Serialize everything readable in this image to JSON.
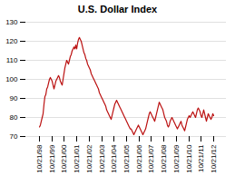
{
  "chart_data": {
    "type": "line",
    "title": "U.S. Dollar Index",
    "color": "#bb1111",
    "grid": true,
    "ylim": [
      70,
      130
    ],
    "yticks": [
      70,
      80,
      90,
      100,
      110,
      120,
      130
    ],
    "categories": [
      "10/21/98",
      null,
      null,
      null,
      null,
      null,
      null,
      null,
      null,
      null,
      null,
      null,
      null,
      null,
      "10/21/99",
      null,
      null,
      null,
      null,
      null,
      null,
      null,
      null,
      null,
      null,
      null,
      null,
      "10/21/00",
      null,
      null,
      null,
      null,
      null,
      null,
      null,
      null,
      null,
      null,
      null,
      null,
      null,
      "10/21/01",
      null,
      null,
      null,
      null,
      null,
      null,
      null,
      null,
      null,
      null,
      null,
      null,
      null,
      "10/21/02",
      null,
      null,
      null,
      null,
      null,
      null,
      null,
      null,
      null,
      null,
      null,
      null,
      null,
      "10/21/03",
      null,
      null,
      null,
      null,
      null,
      null,
      null,
      null,
      null,
      null,
      null,
      null,
      "10/21/04",
      null,
      null,
      null,
      null,
      null,
      null,
      null,
      null,
      null,
      null,
      null,
      null,
      null,
      "10/21/05",
      null,
      null,
      null,
      null,
      null,
      null,
      null,
      null,
      null,
      null,
      null,
      null,
      null,
      "10/21/06",
      null,
      null,
      null,
      null,
      null,
      null,
      null,
      null,
      null,
      null,
      null,
      null,
      "10/21/07",
      null,
      null,
      null,
      null,
      null,
      null,
      null,
      null,
      null,
      null,
      null,
      null,
      null,
      "10/21/08",
      null,
      null,
      null,
      null,
      null,
      null,
      null,
      null,
      null,
      null,
      null,
      null,
      null,
      "10/21/09",
      null,
      null,
      null,
      null,
      null,
      null,
      null,
      null,
      null,
      null,
      null,
      null,
      null,
      "10/21/10",
      null,
      null,
      null,
      null,
      null,
      null,
      null,
      null,
      null,
      null,
      null,
      null,
      "10/21/11",
      null,
      null,
      null,
      null,
      null,
      null,
      null,
      null,
      null,
      null,
      null,
      null,
      null,
      "10/21/12"
    ],
    "values": [
      75,
      76,
      78,
      80,
      82,
      87,
      91,
      92,
      95,
      96,
      98,
      100,
      101,
      100,
      99,
      97,
      95,
      97,
      99,
      100,
      101,
      102,
      101,
      99,
      98,
      97,
      100,
      103,
      106,
      108,
      110,
      109,
      108,
      110,
      112,
      113,
      115,
      116,
      117,
      116,
      118,
      116,
      119,
      121,
      122,
      121,
      120,
      118,
      116,
      114,
      113,
      111,
      110,
      108,
      107,
      106,
      105,
      103,
      102,
      101,
      100,
      99,
      98,
      97,
      96,
      95,
      93,
      92,
      91,
      90,
      89,
      88,
      87,
      86,
      84,
      83,
      82,
      81,
      80,
      79,
      81,
      83,
      85,
      87,
      88,
      89,
      88,
      87,
      86,
      85,
      84,
      83,
      82,
      81,
      80,
      79,
      78,
      77,
      76,
      75,
      74,
      74,
      73,
      72,
      71,
      72,
      73,
      74,
      75,
      76,
      75,
      74,
      73,
      72,
      71,
      72,
      73,
      74,
      76,
      78,
      80,
      82,
      83,
      82,
      81,
      80,
      79,
      78,
      80,
      82,
      84,
      86,
      88,
      87,
      86,
      85,
      84,
      82,
      80,
      79,
      78,
      76,
      75,
      76,
      78,
      79,
      80,
      79,
      78,
      77,
      76,
      75,
      74,
      75,
      76,
      77,
      78,
      76,
      75,
      74,
      73,
      75,
      77,
      79,
      80,
      81,
      80,
      81,
      82,
      83,
      82,
      81,
      80,
      82,
      84,
      85,
      84,
      83,
      81,
      80,
      82,
      84,
      82,
      80,
      78,
      80,
      82,
      81,
      80,
      79,
      80,
      82,
      81
    ]
  }
}
